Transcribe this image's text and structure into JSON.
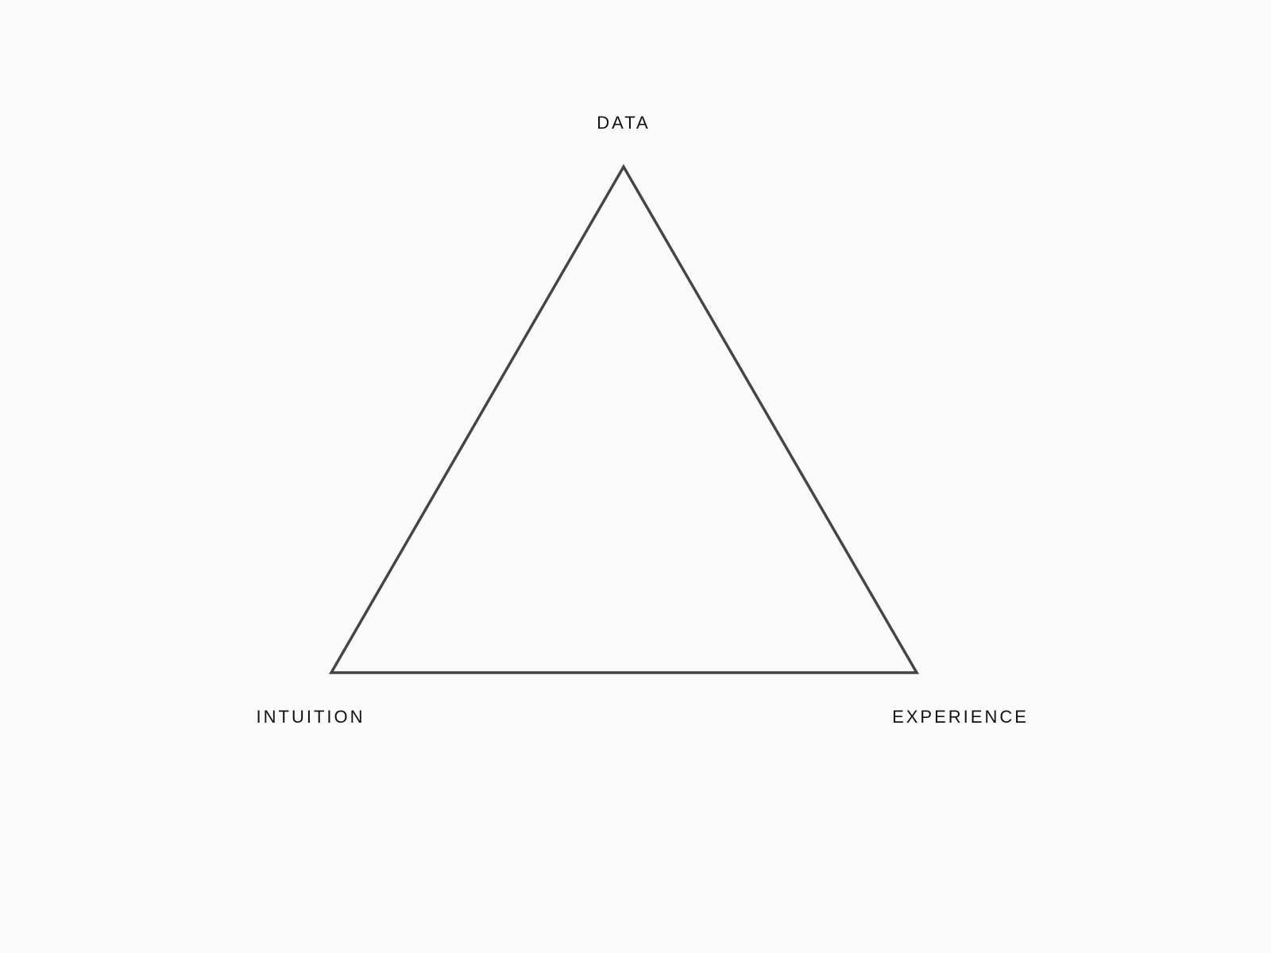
{
  "diagram": {
    "vertices": {
      "top": "DATA",
      "bottom_left": "INTUITION",
      "bottom_right": "EXPERIENCE"
    },
    "colors": {
      "background": "#fafafa",
      "stroke": "#454545",
      "text": "#111111"
    }
  }
}
